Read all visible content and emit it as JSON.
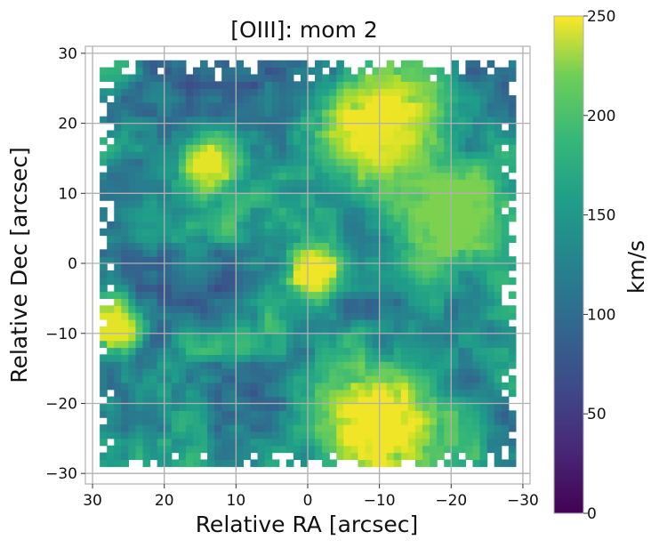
{
  "chart_data": {
    "type": "heatmap",
    "title": "[OIII]: mom 2",
    "xlabel": "Relative RA [arcsec]",
    "ylabel": "Relative Dec [arcsec]",
    "xlim": [
      31,
      -31
    ],
    "ylim": [
      -31.5,
      31
    ],
    "xticks": [
      30,
      20,
      10,
      0,
      -10,
      -20,
      -30
    ],
    "yticks": [
      30,
      20,
      10,
      0,
      -10,
      -20,
      -30
    ],
    "xtick_labels": [
      "30",
      "20",
      "10",
      "0",
      "−10",
      "−20",
      "−30"
    ],
    "ytick_labels": [
      "30",
      "20",
      "10",
      "0",
      "−10",
      "−20",
      "−30"
    ],
    "grid": true,
    "colormap": "viridis",
    "colorbar": {
      "label": "km/s",
      "range": [
        0,
        250
      ],
      "ticks": [
        0,
        50,
        100,
        150,
        200,
        250
      ],
      "tick_labels": [
        "0",
        "50",
        "100",
        "150",
        "200",
        "250"
      ]
    },
    "data_extent": {
      "ra": [
        29,
        -29
      ],
      "dec": [
        -29,
        28.5
      ]
    },
    "background_level": 120,
    "features": [
      {
        "name": "central-bright-knot",
        "ra": -1,
        "dec": -1,
        "value": 245
      },
      {
        "name": "north-west-yellow-complex",
        "ra": -10,
        "dec": 20,
        "value": 245
      },
      {
        "name": "south-west-yellow-complex",
        "ra": -10,
        "dec": -23,
        "value": 245
      },
      {
        "name": "north-east-knot",
        "ra": 14,
        "dec": 14,
        "value": 240
      },
      {
        "name": "east-edge-knot",
        "ra": 27,
        "dec": -9,
        "value": 240
      },
      {
        "name": "western-green-region",
        "ra": -20,
        "dec": 7,
        "value": 200
      }
    ]
  }
}
